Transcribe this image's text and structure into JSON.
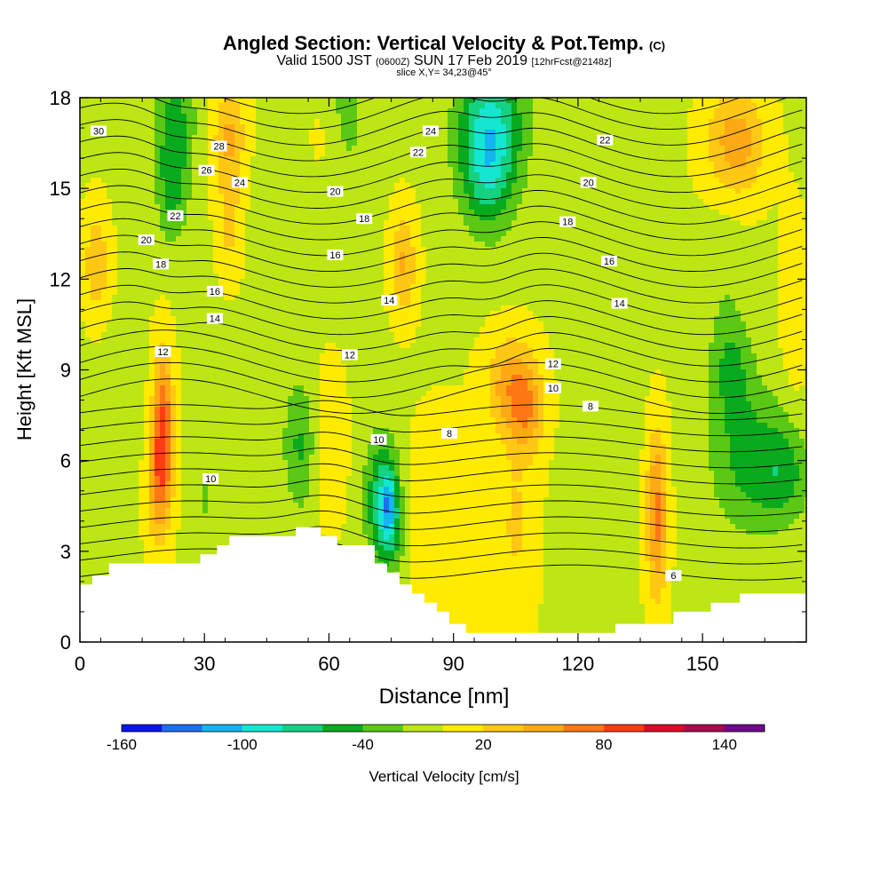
{
  "title": {
    "main": "Angled Section: Vertical Velocity & Pot.Temp.",
    "main_unit": "(C)",
    "valid_prefix": "Valid 1500 JST",
    "valid_utc": "(0600Z)",
    "valid_date": "SUN 17 Feb 2019",
    "forecast": "[12hrFcst@2148z]",
    "slice": "slice X,Y= 34,23@45°"
  },
  "chart_data": {
    "type": "heatmap",
    "xlabel": "Distance [nm]",
    "ylabel": "Height [Kft MSL]",
    "xlim": [
      0,
      175
    ],
    "ylim": [
      0,
      18
    ],
    "xticks": [
      0,
      30,
      60,
      90,
      120,
      150
    ],
    "yticks": [
      0,
      3,
      6,
      9,
      12,
      15,
      18
    ],
    "colorbar": {
      "label": "Vertical Velocity [cm/s]",
      "tick_labels": [
        "-160",
        "-100",
        "-40",
        "20",
        "80",
        "140"
      ],
      "tick_values": [
        -160,
        -100,
        -40,
        20,
        80,
        140
      ],
      "min": -160,
      "max": 160,
      "step": 20,
      "colors": [
        "#0a14f0",
        "#1e6ef0",
        "#14b4f0",
        "#14e6d2",
        "#14d282",
        "#0aaa1e",
        "#5ac814",
        "#bee614",
        "#ffeb00",
        "#ffc814",
        "#ffaa14",
        "#ff7814",
        "#ff3c14",
        "#dc0a28",
        "#aa0a50",
        "#6e0a8c"
      ]
    },
    "theta_contours": {
      "units": "C",
      "labels": [
        {
          "value": 30,
          "x": 4.5,
          "y": 16.9
        },
        {
          "value": 28,
          "x": 33.5,
          "y": 16.4
        },
        {
          "value": 26,
          "x": 30.5,
          "y": 15.6
        },
        {
          "value": 24,
          "x": 38.5,
          "y": 15.2
        },
        {
          "value": 22,
          "x": 23,
          "y": 14.1
        },
        {
          "value": 20,
          "x": 16,
          "y": 13.3
        },
        {
          "value": 18,
          "x": 19.5,
          "y": 12.5
        },
        {
          "value": 16,
          "x": 32.5,
          "y": 11.6
        },
        {
          "value": 14,
          "x": 32.5,
          "y": 10.7
        },
        {
          "value": 12,
          "x": 20,
          "y": 9.6
        },
        {
          "value": 10,
          "x": 31.5,
          "y": 5.4
        },
        {
          "value": 24,
          "x": 84.5,
          "y": 16.9
        },
        {
          "value": 22,
          "x": 81.5,
          "y": 16.2
        },
        {
          "value": 20,
          "x": 61.5,
          "y": 14.9
        },
        {
          "value": 18,
          "x": 68.5,
          "y": 14.0
        },
        {
          "value": 16,
          "x": 61.5,
          "y": 12.8
        },
        {
          "value": 14,
          "x": 74.5,
          "y": 11.3
        },
        {
          "value": 12,
          "x": 65,
          "y": 9.5
        },
        {
          "value": 10,
          "x": 72,
          "y": 6.7
        },
        {
          "value": 8,
          "x": 89,
          "y": 6.9
        },
        {
          "value": 22,
          "x": 126.5,
          "y": 16.6
        },
        {
          "value": 20,
          "x": 122.5,
          "y": 15.2
        },
        {
          "value": 18,
          "x": 117.5,
          "y": 13.9
        },
        {
          "value": 16,
          "x": 127.5,
          "y": 12.6
        },
        {
          "value": 14,
          "x": 130,
          "y": 11.2
        },
        {
          "value": 12,
          "x": 114,
          "y": 9.2
        },
        {
          "value": 10,
          "x": 114,
          "y": 8.4
        },
        {
          "value": 8,
          "x": 123,
          "y": 7.8
        },
        {
          "value": 6,
          "x": 143,
          "y": 2.2
        }
      ]
    },
    "terrain_height_kft": [
      {
        "x": 0,
        "h": 1.9
      },
      {
        "x": 3,
        "h": 2.2
      },
      {
        "x": 7,
        "h": 2.6
      },
      {
        "x": 29,
        "h": 2.9
      },
      {
        "x": 33,
        "h": 3.2
      },
      {
        "x": 36,
        "h": 3.5
      },
      {
        "x": 52,
        "h": 3.8
      },
      {
        "x": 58,
        "h": 3.5
      },
      {
        "x": 62,
        "h": 3.2
      },
      {
        "x": 71,
        "h": 2.6
      },
      {
        "x": 74,
        "h": 2.3
      },
      {
        "x": 77,
        "h": 1.9
      },
      {
        "x": 80,
        "h": 1.6
      },
      {
        "x": 83,
        "h": 1.3
      },
      {
        "x": 86,
        "h": 1.0
      },
      {
        "x": 89,
        "h": 0.6
      },
      {
        "x": 93,
        "h": 0.3
      },
      {
        "x": 129,
        "h": 0.6
      },
      {
        "x": 143,
        "h": 1.0
      },
      {
        "x": 152,
        "h": 1.3
      },
      {
        "x": 159,
        "h": 1.6
      },
      {
        "x": 175,
        "h": 1.6
      }
    ]
  }
}
